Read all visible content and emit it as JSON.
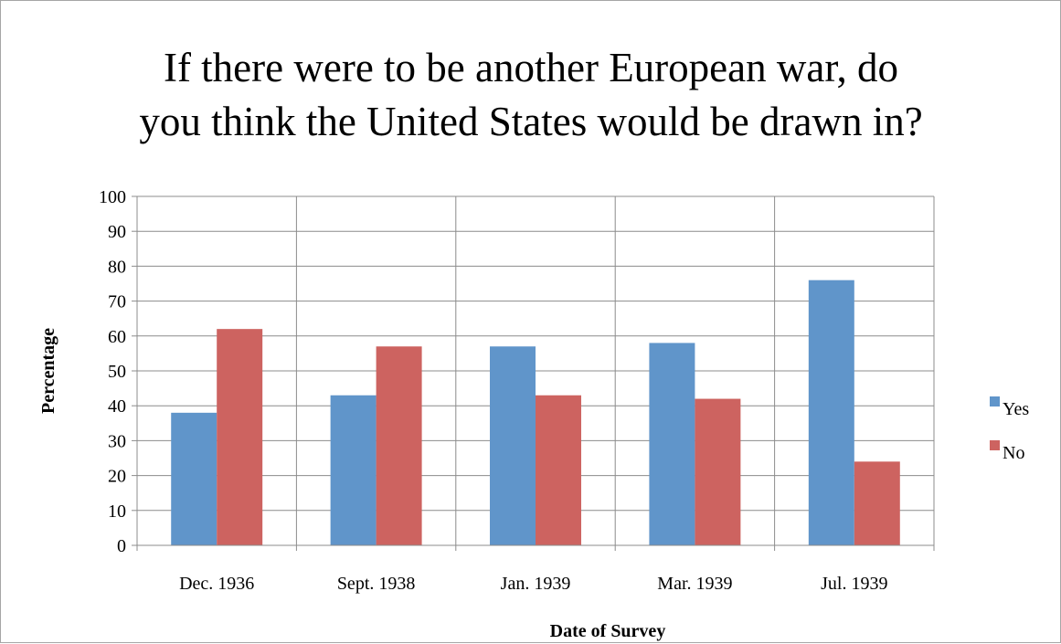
{
  "chart_data": {
    "type": "bar",
    "title_lines": [
      "If there were to be another European war, do",
      "you think the United States would be drawn in?"
    ],
    "xlabel": "Date of Survey",
    "ylabel": "Percentage",
    "categories": [
      "Dec. 1936",
      "Sept. 1938",
      "Jan. 1939",
      "Mar. 1939",
      "Jul. 1939"
    ],
    "series": [
      {
        "name": "Yes",
        "color": "#6095ca",
        "values": [
          38,
          43,
          57,
          58,
          76
        ]
      },
      {
        "name": "No",
        "color": "#cd6360",
        "values": [
          62,
          57,
          43,
          42,
          24
        ]
      }
    ],
    "ylim": [
      0,
      100
    ],
    "yticks": [
      "0",
      "10",
      "20",
      "30",
      "40",
      "50",
      "60",
      "70",
      "80",
      "90",
      "100"
    ],
    "grid": true,
    "legend_position": "right"
  }
}
